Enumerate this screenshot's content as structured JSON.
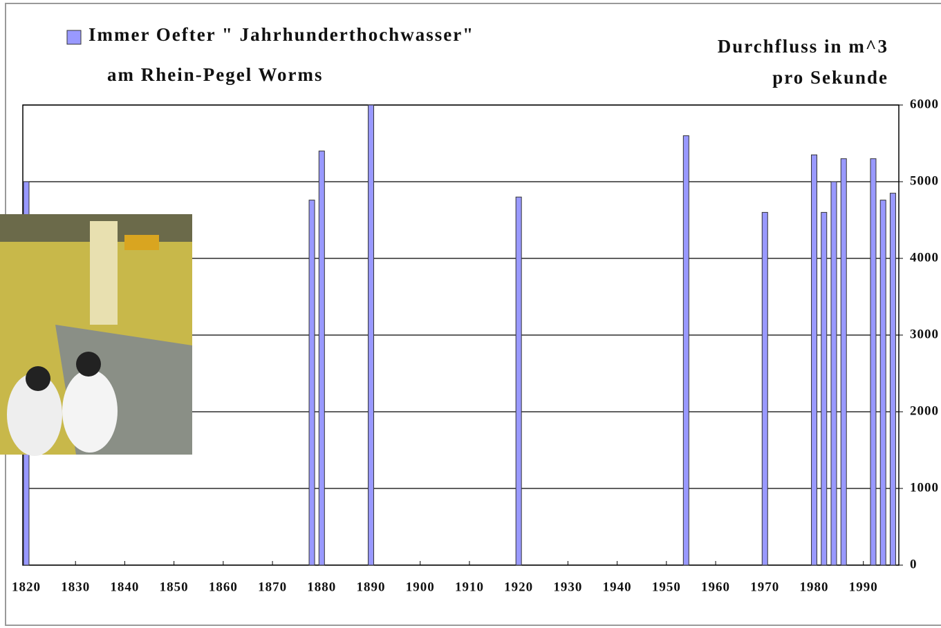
{
  "chart_data": {
    "type": "bar",
    "series": [
      {
        "name": "Immer Oefter \" Jahrhunderthochwasser\"",
        "color": "#9999ff",
        "x": [
          1820,
          1878,
          1880,
          1890,
          1920,
          1954,
          1970,
          1980,
          1982,
          1984,
          1986,
          1992,
          1994,
          1996
        ],
        "values": [
          5000,
          4760,
          5400,
          6000,
          4800,
          5600,
          4600,
          5350,
          4600,
          5000,
          5300,
          5300,
          4760,
          4850
        ]
      }
    ],
    "subtitle": "am Rhein-Pegel Worms",
    "ylabel": [
      "Durchfluss in m^3",
      "pro Sekunde"
    ],
    "xlim": [
      1819.3,
      1997.2
    ],
    "xticks": [
      1820,
      1830,
      1840,
      1850,
      1860,
      1870,
      1880,
      1890,
      1900,
      1910,
      1920,
      1930,
      1940,
      1950,
      1960,
      1970,
      1980,
      1990
    ],
    "ylim": [
      0,
      6000
    ],
    "yticks": [
      0,
      1000,
      2000,
      3000,
      4000,
      5000,
      6000
    ],
    "grid": true,
    "y_axis_side": "right"
  }
}
